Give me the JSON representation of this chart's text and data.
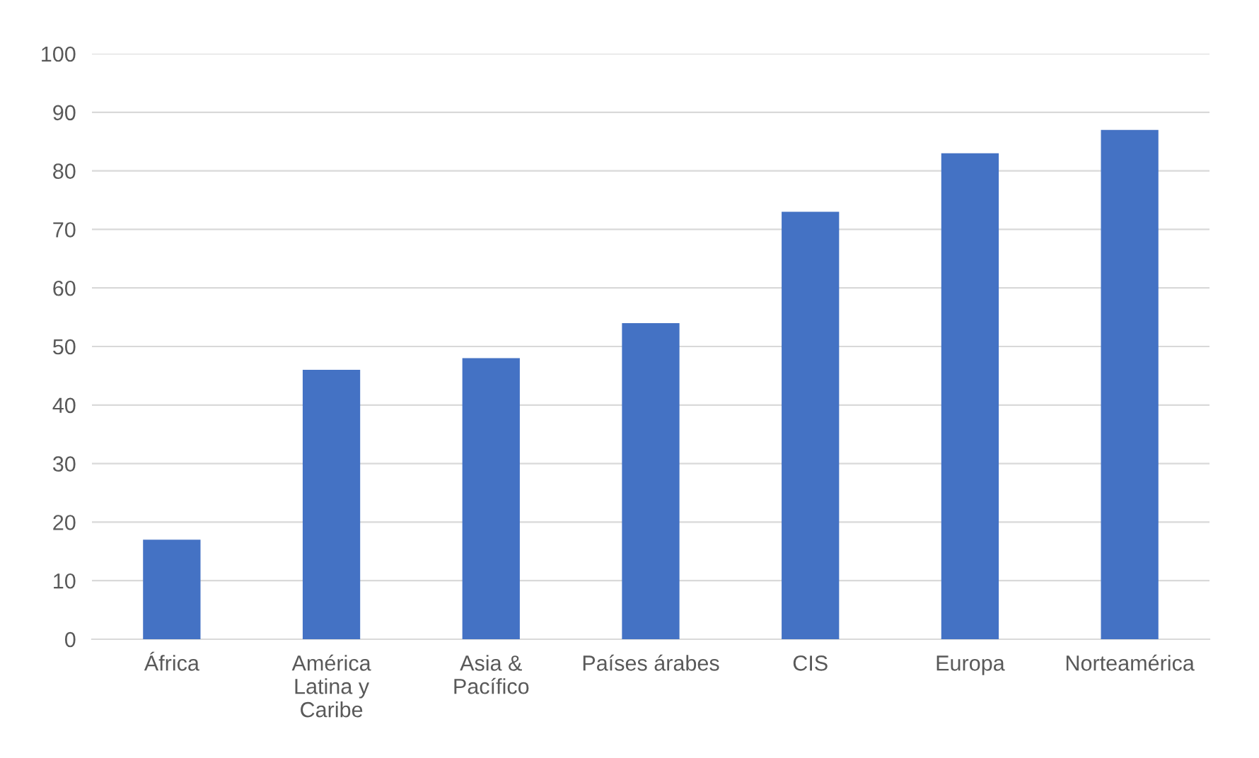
{
  "chart_data": {
    "type": "bar",
    "categories": [
      "África",
      "América\nLatina y\nCaribe",
      "Asia &\nPacífico",
      "Países árabes",
      "CIS",
      "Europa",
      "Norteamérica"
    ],
    "values": [
      17,
      46,
      48,
      54,
      73,
      83,
      87
    ],
    "color": "#4472c4",
    "ylim": [
      0,
      100
    ],
    "yticks": [
      0,
      10,
      20,
      30,
      40,
      50,
      60,
      70,
      80,
      90,
      100
    ],
    "grid": "y"
  }
}
